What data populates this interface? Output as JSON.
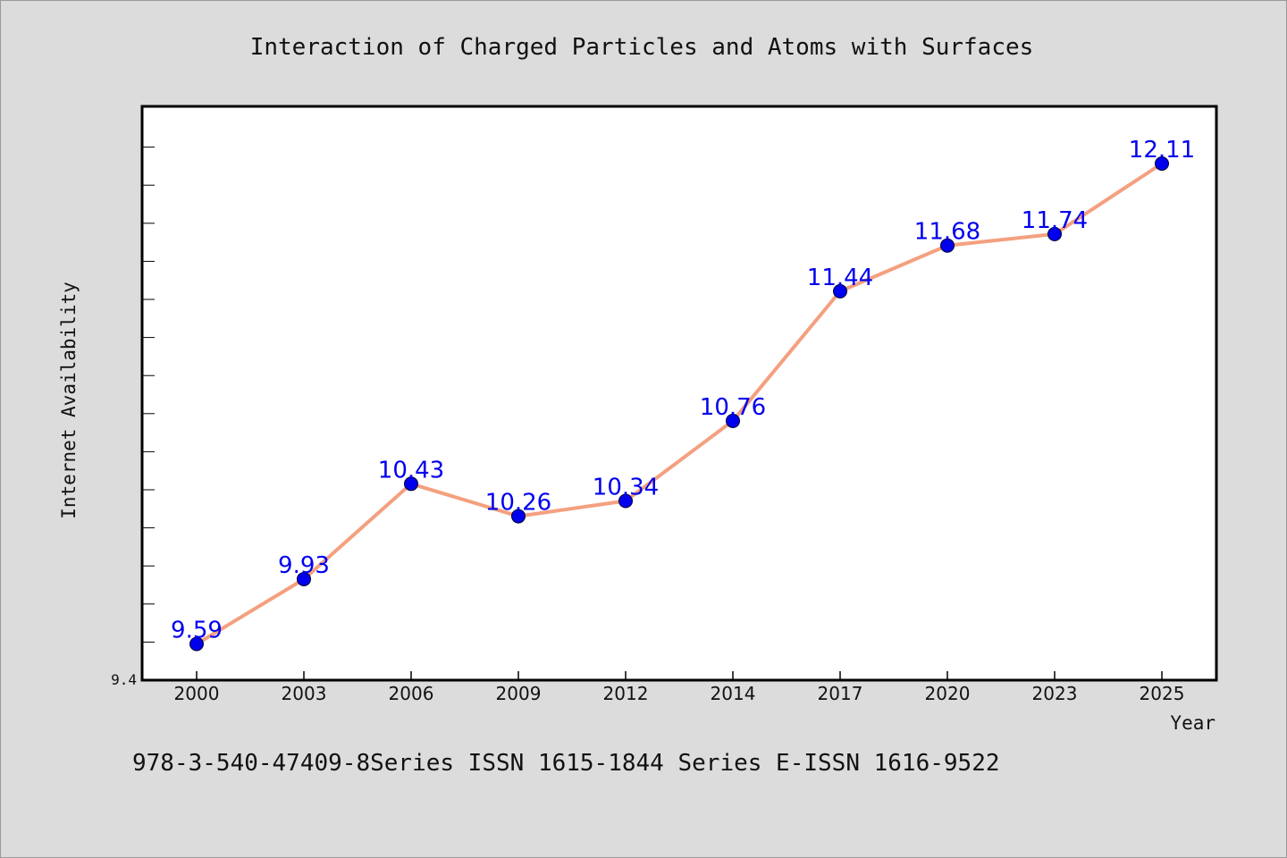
{
  "chart_data": {
    "type": "line",
    "title": "Interaction of Charged Particles and Atoms with Surfaces",
    "xlabel": "Year",
    "ylabel": "Internet Availability",
    "categories": [
      "2000",
      "2003",
      "2006",
      "2009",
      "2012",
      "2014",
      "2017",
      "2020",
      "2023",
      "2025"
    ],
    "series": [
      {
        "values": [
          9.59,
          9.93,
          10.43,
          10.26,
          10.34,
          10.76,
          11.44,
          11.68,
          11.74,
          12.11
        ],
        "labels": [
          "9.59",
          "9.93",
          "10.43",
          "10.26",
          "10.34",
          "10.76",
          "11.44",
          "11.68",
          "11.74",
          "12.11"
        ]
      }
    ],
    "ylim": [
      9.4,
      12.41
    ],
    "ymin_label": "9.4",
    "grid": false,
    "line_color": "#f4a07f",
    "marker_color": "#0000ee",
    "label_color": "#0000ee"
  },
  "footer": "978-3-540-47409-8Series ISSN 1615-1844 Series E-ISSN 1616-9522"
}
